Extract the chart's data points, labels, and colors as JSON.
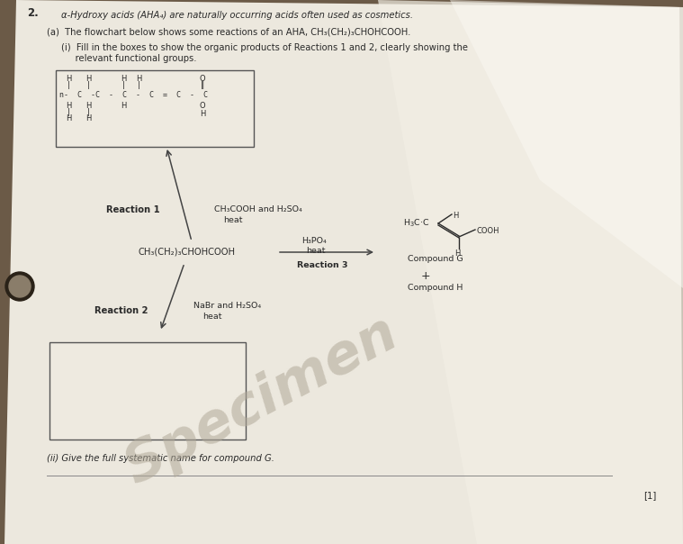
{
  "bg_color": "#6b5a47",
  "paper_color": "#eeeae0",
  "paper_color2": "#f5f2ea",
  "glare_color": "#f8f6f0",
  "title_line": "α-Hydroxy acids (AHA₄) are naturally occurring acids often used as cosmetics.",
  "part_a": "(a)  The flowchart below shows some reactions of an AHA, CH₃(CH₂)₃CHOHCOOH.",
  "part_i_line1": "(i)  Fill in the boxes to show the organic products of Reactions 1 and 2, clearly showing the",
  "part_i_line2": "     relevant functional groups.",
  "reaction1_label": "Reaction 1",
  "reaction1_reagents_line1": "CH₃COOH and H₂SO₄",
  "reaction1_reagents_line2": "heat",
  "central_compound": "CH₃(CH₂)₃CHOHCOOH",
  "reaction2_label": "Reaction 2",
  "reaction2_reagents_line1": "NaBr and H₂SO₄",
  "reaction2_reagents_line2": "heat",
  "reaction3_label": "Reaction 3",
  "reaction3_reagents_line1": "H₃PO₄",
  "reaction3_reagents_line2": "heat",
  "compound_g_label": "Compound G",
  "compound_h_label": "Compound H",
  "h3cc_label": "H₃C·C",
  "part_ii": "(ii) Give the full systematic name for compound G.",
  "mark": "[1]",
  "specimen_text": "Specimen",
  "question_num": "2.",
  "text_color": "#2a2a2a",
  "box_edge_color": "#555555",
  "arrow_color": "#444444"
}
